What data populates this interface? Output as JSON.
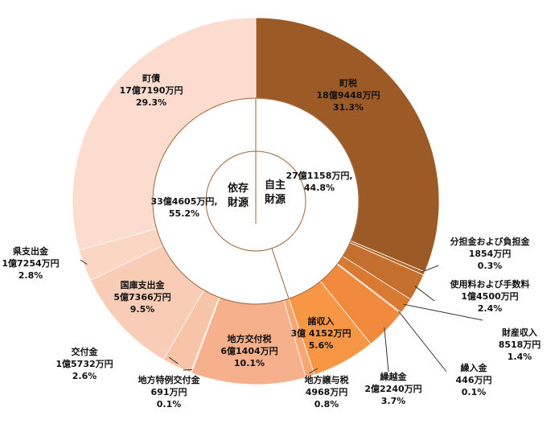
{
  "chart_data": {
    "type": "pie",
    "variant": "nested-donut",
    "unit": "万円",
    "center_labels": [
      [
        "依存",
        "財源"
      ],
      [
        "自主",
        "財源"
      ]
    ],
    "inner_ring": [
      {
        "name": "自主財源",
        "amount": "27億1158万円,",
        "percent": "44.8%",
        "value": 44.8,
        "color": "#ffffff"
      },
      {
        "name": "依存財源",
        "amount": "33億4605万円,",
        "percent": "55.2%",
        "value": 55.2,
        "color": "#ffffff"
      }
    ],
    "outer_ring": [
      {
        "name": "町税",
        "amount": "18億9448万円",
        "percent": "31.3%",
        "value": 31.3,
        "color": "#9c5a27"
      },
      {
        "name": "分担金および負担金",
        "amount": "1854万円",
        "percent": "0.3%",
        "value": 0.3,
        "color": "#b4652a"
      },
      {
        "name": "使用料および手数料",
        "amount": "1億4500万円",
        "percent": "2.4%",
        "value": 2.4,
        "color": "#c46f2e"
      },
      {
        "name": "財産収入",
        "amount": "8518万円",
        "percent": "1.4%",
        "value": 1.4,
        "color": "#d97a33"
      },
      {
        "name": "繰入金",
        "amount": "446万円",
        "percent": "0.1%",
        "value": 0.1,
        "color": "#e88338"
      },
      {
        "name": "繰越金",
        "amount": "2億2240万円",
        "percent": "3.7%",
        "value": 3.7,
        "color": "#f18a3d"
      },
      {
        "name": "諸収入",
        "amount": "3億 4152万円",
        "percent": "5.6%",
        "value": 5.6,
        "color": "#f79644"
      },
      {
        "name": "地方譲与税",
        "amount": "4968万円",
        "percent": "0.8%",
        "value": 0.8,
        "color": "#f7a774"
      },
      {
        "name": "地方交付税",
        "amount": "6億1404万円",
        "percent": "10.1%",
        "value": 10.1,
        "color": "#f6b08b"
      },
      {
        "name": "地方特例交付金",
        "amount": "691万円",
        "percent": "0.1%",
        "value": 0.1,
        "color": "#f6bc9c"
      },
      {
        "name": "交付金",
        "amount": "1億5732万円",
        "percent": "2.6%",
        "value": 2.6,
        "color": "#f7c4a7"
      },
      {
        "name": "国庫支出金",
        "amount": "5億7366万円",
        "percent": "9.5%",
        "value": 9.5,
        "color": "#f9cdb5"
      },
      {
        "name": "県支出金",
        "amount": "1億7254万円",
        "percent": "2.8%",
        "value": 2.8,
        "color": "#fad6c3"
      },
      {
        "name": "町債",
        "amount": "17億7190万円",
        "percent": "29.3%",
        "value": 29.3,
        "color": "#fbdcce"
      }
    ]
  }
}
